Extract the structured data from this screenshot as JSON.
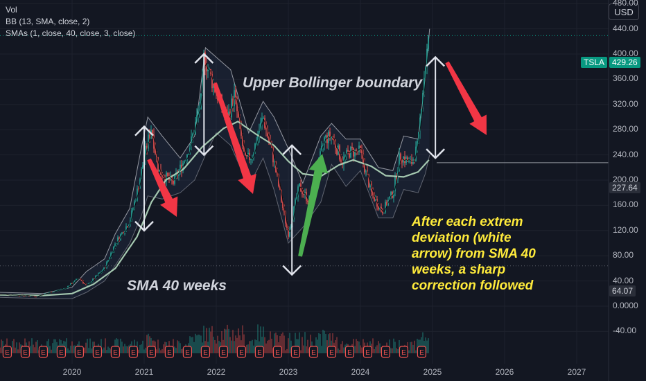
{
  "indicators": {
    "vol": "Vol",
    "bb": "BB (13, SMA, close, 2)",
    "smas": "SMAs (1, close, 40, close, 3, close)"
  },
  "currency_button": "USD",
  "price_labels": {
    "symbol": "TSLA",
    "last_price": "429.26",
    "reference_line": "227.64",
    "lower_line": "64.07"
  },
  "annotations": {
    "upper_bollinger": "Upper Bollinger boundary",
    "sma40": "SMA 40 weeks",
    "conclusion": "After each extrem deviation (white arrow) from SMA 40 weeks, a sharp correction followed"
  },
  "colors": {
    "background": "#131722",
    "up_candle": "#26a69a",
    "down_candle": "#ef5350",
    "bollinger": "#9598a1",
    "sma40": "#a5c8b0",
    "red_arrow": "#f23645",
    "green_arrow": "#4caf50",
    "white_arrow": "#e0e3eb",
    "annotation_yellow": "#ffeb3b",
    "tag_green": "#089981"
  },
  "earnings_icon_label": "E",
  "chart_data": {
    "type": "candlestick",
    "symbol": "TSLA",
    "x_ticks": [
      "2020",
      "2021",
      "2022",
      "2023",
      "2024",
      "2025",
      "2026",
      "2027"
    ],
    "y_ticks": [
      "480.00",
      "440.00",
      "400.00",
      "360.00",
      "320.00",
      "280.00",
      "240.00",
      "200.00",
      "160.00",
      "120.00",
      "80.00",
      "40.00",
      "0.0000",
      "-40.00"
    ],
    "ylim": [
      -50,
      495
    ],
    "last_price": 429.26,
    "reference_price": 227.64,
    "lower_price": 64.07,
    "price_path": [
      [
        2019.0,
        19
      ],
      [
        2019.5,
        16
      ],
      [
        2019.9,
        28
      ],
      [
        2020.1,
        45
      ],
      [
        2020.2,
        32
      ],
      [
        2020.45,
        60
      ],
      [
        2020.6,
        100
      ],
      [
        2020.8,
        135
      ],
      [
        2020.9,
        180
      ],
      [
        2021.0,
        235
      ],
      [
        2021.1,
        285
      ],
      [
        2021.2,
        215
      ],
      [
        2021.4,
        195
      ],
      [
        2021.55,
        230
      ],
      [
        2021.65,
        260
      ],
      [
        2021.8,
        330
      ],
      [
        2021.83,
        400
      ],
      [
        2021.9,
        370
      ],
      [
        2022.0,
        340
      ],
      [
        2022.15,
        295
      ],
      [
        2022.25,
        335
      ],
      [
        2022.4,
        230
      ],
      [
        2022.5,
        240
      ],
      [
        2022.65,
        300
      ],
      [
        2022.8,
        230
      ],
      [
        2022.95,
        140
      ],
      [
        2023.0,
        115
      ],
      [
        2023.15,
        190
      ],
      [
        2023.3,
        165
      ],
      [
        2023.5,
        265
      ],
      [
        2023.6,
        270
      ],
      [
        2023.75,
        230
      ],
      [
        2023.85,
        245
      ],
      [
        2024.0,
        245
      ],
      [
        2024.15,
        180
      ],
      [
        2024.3,
        150
      ],
      [
        2024.45,
        180
      ],
      [
        2024.55,
        240
      ],
      [
        2024.7,
        225
      ],
      [
        2024.8,
        255
      ],
      [
        2024.85,
        330
      ],
      [
        2024.92,
        400
      ],
      [
        2024.96,
        430
      ]
    ],
    "sma40_path": [
      [
        2019.0,
        18
      ],
      [
        2019.6,
        17
      ],
      [
        2020.0,
        20
      ],
      [
        2020.3,
        35
      ],
      [
        2020.6,
        60
      ],
      [
        2020.9,
        110
      ],
      [
        2021.1,
        165
      ],
      [
        2021.3,
        200
      ],
      [
        2021.55,
        218
      ],
      [
        2021.8,
        252
      ],
      [
        2022.1,
        282
      ],
      [
        2022.3,
        293
      ],
      [
        2022.55,
        273
      ],
      [
        2022.8,
        255
      ],
      [
        2023.0,
        230
      ],
      [
        2023.2,
        210
      ],
      [
        2023.45,
        206
      ],
      [
        2023.7,
        224
      ],
      [
        2023.9,
        232
      ],
      [
        2024.15,
        222
      ],
      [
        2024.35,
        207
      ],
      [
        2024.6,
        205
      ],
      [
        2024.8,
        213
      ],
      [
        2024.95,
        232
      ]
    ],
    "bb_upper_path": [
      [
        2019.0,
        22
      ],
      [
        2019.6,
        20
      ],
      [
        2020.0,
        30
      ],
      [
        2020.2,
        55
      ],
      [
        2020.45,
        75
      ],
      [
        2020.6,
        115
      ],
      [
        2020.8,
        155
      ],
      [
        2020.95,
        245
      ],
      [
        2021.05,
        300
      ],
      [
        2021.25,
        270
      ],
      [
        2021.5,
        235
      ],
      [
        2021.7,
        270
      ],
      [
        2021.85,
        410
      ],
      [
        2022.0,
        395
      ],
      [
        2022.2,
        375
      ],
      [
        2022.45,
        275
      ],
      [
        2022.65,
        325
      ],
      [
        2022.8,
        300
      ],
      [
        2023.0,
        250
      ],
      [
        2023.2,
        195
      ],
      [
        2023.45,
        270
      ],
      [
        2023.6,
        290
      ],
      [
        2023.8,
        265
      ],
      [
        2024.0,
        265
      ],
      [
        2024.25,
        220
      ],
      [
        2024.45,
        215
      ],
      [
        2024.6,
        270
      ],
      [
        2024.8,
        265
      ],
      [
        2024.9,
        360
      ],
      [
        2024.96,
        440
      ]
    ],
    "bb_lower_path": [
      [
        2019.0,
        14
      ],
      [
        2019.6,
        12
      ],
      [
        2020.0,
        12
      ],
      [
        2020.2,
        22
      ],
      [
        2020.45,
        40
      ],
      [
        2020.6,
        65
      ],
      [
        2020.8,
        100
      ],
      [
        2020.95,
        140
      ],
      [
        2021.05,
        175
      ],
      [
        2021.25,
        170
      ],
      [
        2021.5,
        180
      ],
      [
        2021.7,
        200
      ],
      [
        2021.85,
        240
      ],
      [
        2022.0,
        275
      ],
      [
        2022.2,
        255
      ],
      [
        2022.45,
        190
      ],
      [
        2022.65,
        235
      ],
      [
        2022.8,
        185
      ],
      [
        2023.0,
        100
      ],
      [
        2023.2,
        125
      ],
      [
        2023.45,
        165
      ],
      [
        2023.6,
        225
      ],
      [
        2023.8,
        190
      ],
      [
        2024.0,
        215
      ],
      [
        2024.25,
        140
      ],
      [
        2024.45,
        140
      ],
      [
        2024.6,
        185
      ],
      [
        2024.8,
        180
      ],
      [
        2024.9,
        210
      ],
      [
        2024.96,
        240
      ]
    ]
  }
}
